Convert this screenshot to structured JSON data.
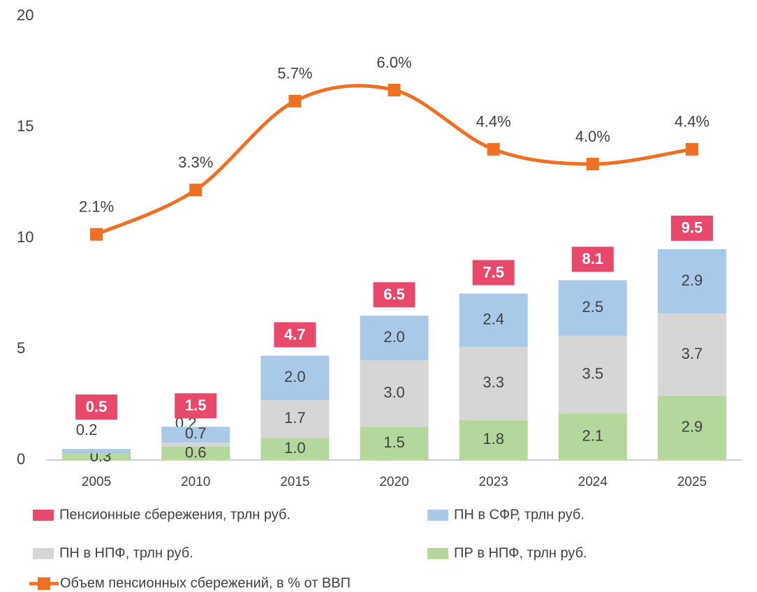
{
  "chart_data": {
    "type": "bar",
    "categories": [
      "2005",
      "2010",
      "2015",
      "2020",
      "2023",
      "2024",
      "2025"
    ],
    "ylim": [
      0,
      20
    ],
    "yticks": [
      0,
      5,
      10,
      15,
      20
    ],
    "y2lim": [
      -4,
      8
    ],
    "series": [
      {
        "name": "Пенсионные сбережения, трлн руб.",
        "type": "total",
        "color": "#e8496a",
        "values": [
          0.5,
          1.5,
          4.7,
          6.5,
          7.5,
          8.1,
          9.5
        ]
      },
      {
        "name": "ПН в СФР, трлн руб.",
        "type": "bar",
        "color": "#a9c9e9",
        "values": [
          0.2,
          0.7,
          2.0,
          2.0,
          2.4,
          2.5,
          2.9
        ],
        "value_labels": [
          "0.2",
          "0.7",
          "2.0",
          "2.0",
          "2.4",
          "2.5",
          "2.9"
        ]
      },
      {
        "name": "ПН в НПФ, трлн руб.",
        "type": "bar",
        "color": "#d6d6d6",
        "values": [
          null,
          0.2,
          1.7,
          3.0,
          3.3,
          3.5,
          3.7
        ],
        "value_labels": [
          null,
          "0.2",
          "1.7",
          "3.0",
          "3.3",
          "3.5",
          "3.7"
        ]
      },
      {
        "name": "ПР в НПФ, трлн руб.",
        "type": "bar",
        "color": "#b4d89c",
        "values": [
          0.3,
          0.6,
          1.0,
          1.5,
          1.8,
          2.1,
          2.9
        ],
        "value_labels": [
          "0.3",
          "0.6",
          "1.0",
          "1.5",
          "1.8",
          "2.1",
          "2.9"
        ]
      },
      {
        "name": "Объем пенсионных сбережений, в % от ВВП",
        "type": "line",
        "axis": "y2",
        "color": "#ee7023",
        "values": [
          2.1,
          3.3,
          5.7,
          6.0,
          4.4,
          4.0,
          4.4
        ],
        "value_labels": [
          "2.1%",
          "3.3%",
          "5.7%",
          "6.0%",
          "4.4%",
          "4.0%",
          "4.4%"
        ]
      }
    ]
  }
}
